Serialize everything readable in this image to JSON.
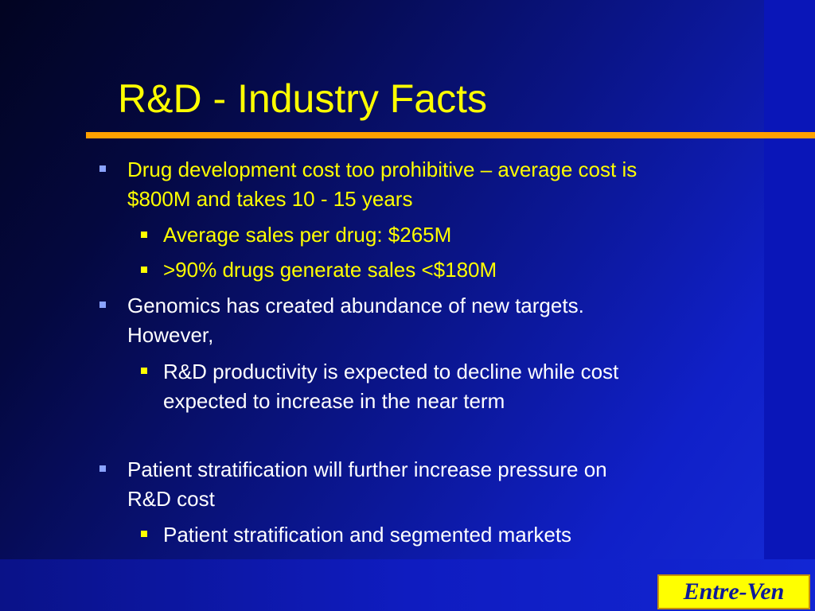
{
  "slide": {
    "title": "R&D - Industry Facts",
    "items": [
      {
        "level": 1,
        "color": "yellow",
        "lines": [
          "Drug development cost too prohibitive – average cost is",
          "$800M and takes 10 - 15 years"
        ]
      },
      {
        "level": 2,
        "color": "yellow",
        "lines": [
          "Average sales per drug: $265M"
        ]
      },
      {
        "level": 2,
        "color": "yellow",
        "lines": [
          ">90% drugs generate sales <$180M"
        ]
      },
      {
        "level": 1,
        "color": "white",
        "lines": [
          "Genomics has created abundance of new targets.",
          "However,"
        ]
      },
      {
        "level": 2,
        "color": "white",
        "lines": [
          "R&D productivity is expected to decline while cost",
          "expected to increase in the near term"
        ]
      },
      {
        "level": 1,
        "color": "white",
        "lines": [
          "Patient stratification will further increase pressure on",
          "R&D cost"
        ]
      },
      {
        "level": 2,
        "color": "white",
        "lines": [
          "Patient stratification and segmented markets"
        ]
      }
    ],
    "logo": "Entre-Ven",
    "colors": {
      "title": "#ffff00",
      "title_rule": "#ffa000",
      "highlight_text": "#ffff00",
      "body_text": "#ffffff",
      "logo_background": "#ffff00",
      "logo_text": "#0d1a9a"
    }
  }
}
